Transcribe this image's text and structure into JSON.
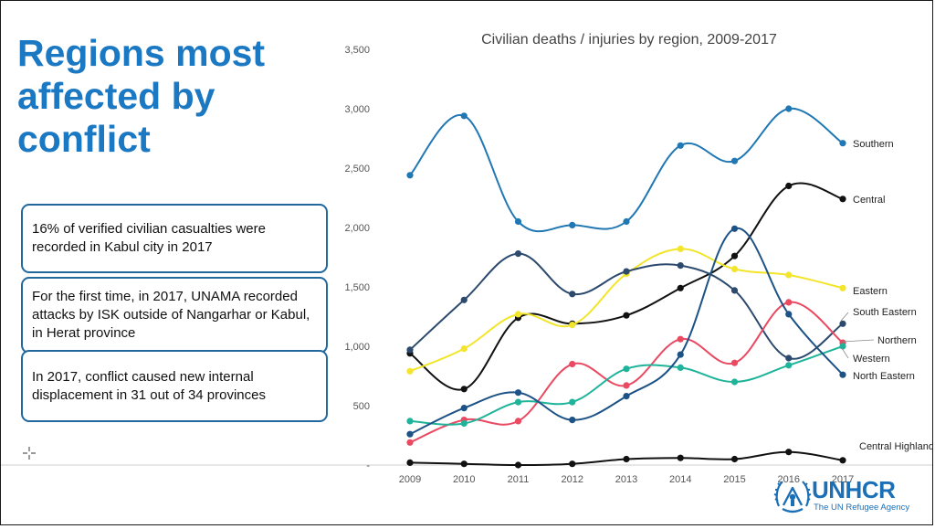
{
  "heading": "Regions most affected by conflict",
  "callouts": [
    "16% of verified civilian casualties were recorded in Kabul city in 2017",
    "For the first time, in 2017, UNAMA recorded attacks by ISK outside of Nangarhar or Kabul, in Herat province",
    "In 2017, conflict caused new internal displacement in 31 out of 34 provinces"
  ],
  "logo": {
    "name": "UNHCR",
    "tagline": "The UN Refugee Agency",
    "color": "#1b6fb6"
  },
  "chart_data": {
    "type": "line",
    "title": "Civilian deaths / injuries by region, 2009-2017",
    "x": [
      "2009",
      "2010",
      "2011",
      "2012",
      "2013",
      "2014",
      "2015",
      "2016",
      "2017"
    ],
    "ylim": [
      0,
      3500
    ],
    "yticks": [
      0,
      500,
      1000,
      1500,
      2000,
      2500,
      3000,
      3500
    ],
    "ytick_labels": [
      "-",
      "500",
      "1,000",
      "1,500",
      "2,000",
      "2,500",
      "3,000",
      "3,500"
    ],
    "grid": false,
    "legend": "labels at line ends",
    "series": [
      {
        "name": "Southern",
        "color": "#1f77b4",
        "values": [
          2440,
          2940,
          2050,
          2020,
          2050,
          2690,
          2560,
          3000,
          2710
        ]
      },
      {
        "name": "Central",
        "color": "#111111",
        "values": [
          940,
          640,
          1240,
          1190,
          1260,
          1490,
          1760,
          2350,
          2240
        ]
      },
      {
        "name": "Eastern",
        "color": "#f2e52b",
        "values": [
          790,
          980,
          1270,
          1180,
          1610,
          1820,
          1650,
          1600,
          1490
        ]
      },
      {
        "name": "South Eastern",
        "color": "#2c4a6e",
        "values": [
          970,
          1390,
          1780,
          1440,
          1630,
          1680,
          1470,
          900,
          1190
        ]
      },
      {
        "name": "Northern",
        "color": "#e94a62",
        "values": [
          190,
          380,
          370,
          850,
          670,
          1060,
          860,
          1370,
          1030
        ]
      },
      {
        "name": "Western",
        "color": "#1fb49a",
        "values": [
          370,
          350,
          530,
          530,
          810,
          820,
          700,
          840,
          1000
        ]
      },
      {
        "name": "North Eastern",
        "color": "#1d5286",
        "values": [
          260,
          480,
          610,
          380,
          580,
          930,
          1990,
          1270,
          760
        ]
      },
      {
        "name": "Central Highlands",
        "color": "#111111",
        "values": [
          20,
          10,
          0,
          10,
          50,
          60,
          50,
          110,
          40
        ]
      }
    ]
  }
}
